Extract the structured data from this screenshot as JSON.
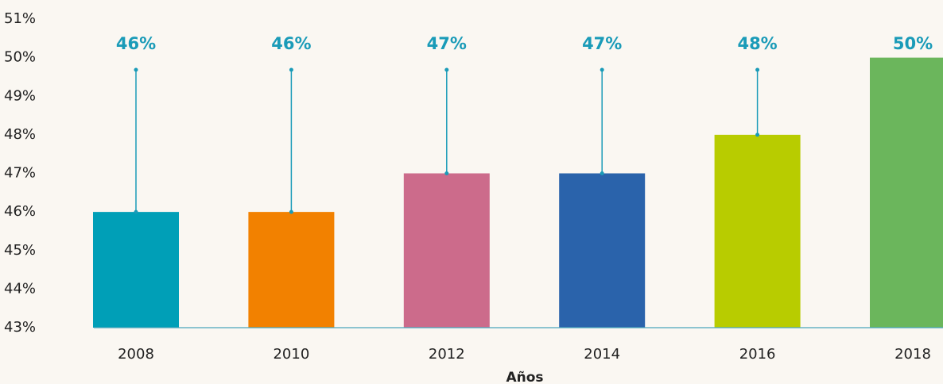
{
  "chart_data": {
    "type": "bar",
    "x_label": "Años",
    "categories": [
      "2008",
      "2010",
      "2012",
      "2014",
      "2016",
      "2018"
    ],
    "values": [
      46,
      46,
      47,
      47,
      48,
      50
    ],
    "value_labels": [
      "46%",
      "46%",
      "47%",
      "47%",
      "48%",
      "50%"
    ],
    "colors": [
      "#009fb7",
      "#f28100",
      "#cc6b8b",
      "#2a63ab",
      "#b8cc00",
      "#6bb65c"
    ],
    "ylim": [
      43,
      51
    ],
    "yticks": [
      {
        "value": 43,
        "label": "43%"
      },
      {
        "value": 44,
        "label": "44%"
      },
      {
        "value": 45,
        "label": "45%"
      },
      {
        "value": 46,
        "label": "46%"
      },
      {
        "value": 47,
        "label": "47%"
      },
      {
        "value": 48,
        "label": "48%"
      },
      {
        "value": 49,
        "label": "49%"
      },
      {
        "value": 50,
        "label": "50%"
      },
      {
        "value": 51,
        "label": "51%"
      }
    ],
    "grid": false
  }
}
